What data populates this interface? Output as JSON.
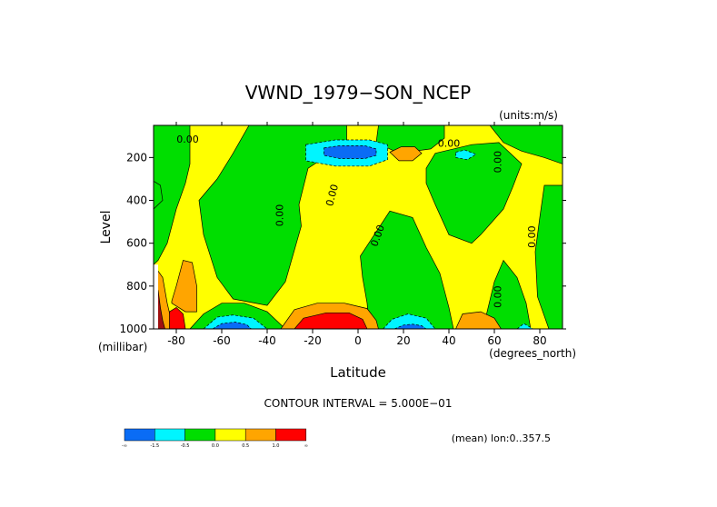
{
  "chart_data": {
    "type": "heatmap",
    "title": "VWND_1979−SON_NCEP",
    "units_label": "(units:m/s)",
    "xlabel": "Latitude",
    "ylabel": "Level",
    "x_units_label": "(degrees_north)",
    "y_units_label": "(millibar)",
    "xlim": [
      -90,
      90
    ],
    "ylim": [
      1000,
      50
    ],
    "y_reversed": true,
    "x_ticks": [
      -80,
      -60,
      -40,
      -20,
      0,
      20,
      40,
      60,
      80
    ],
    "y_ticks": [
      200,
      400,
      600,
      800,
      1000
    ],
    "contour_interval_label": "CONTOUR INTERVAL = 5.000E−01",
    "mean_label": "(mean) lon:0..357.5",
    "zero_contour_labels": [
      {
        "text": "0.00",
        "x": -75,
        "y": 130,
        "rotation": 0
      },
      {
        "text": "0.00",
        "x": -33,
        "y": 470,
        "rotation": -90
      },
      {
        "text": "0.00",
        "x": -10,
        "y": 380,
        "rotation": -75
      },
      {
        "text": "0.00",
        "x": 10,
        "y": 570,
        "rotation": -70
      },
      {
        "text": "0.00",
        "x": 40,
        "y": 150,
        "rotation": 0
      },
      {
        "text": "0.00",
        "x": 63,
        "y": 220,
        "rotation": -90
      },
      {
        "text": "0.00",
        "x": 63,
        "y": 850,
        "rotation": -90
      },
      {
        "text": "0.00",
        "x": 78,
        "y": 570,
        "rotation": -90
      }
    ],
    "colorbar": {
      "bins": [
        {
          "color": "#0a6cf5",
          "from": "-inf",
          "to": -1.5
        },
        {
          "color": "#00f5ff",
          "from": -1.5,
          "to": -0.5
        },
        {
          "color": "#00de00",
          "from": -0.5,
          "to": 0.0
        },
        {
          "color": "#ffff00",
          "from": 0.0,
          "to": 0.5
        },
        {
          "color": "#ffa500",
          "from": 0.5,
          "to": 1.0
        },
        {
          "color": "#ff0000",
          "from": 1.0,
          "to": "inf"
        }
      ],
      "labels": [
        "-∞",
        "-1.5",
        "-0.5",
        "0.0",
        "0.5",
        "1.0",
        "∞"
      ]
    },
    "regions": [
      {
        "value_band": "green",
        "color": "#00de00",
        "poly": [
          [
            -90,
            50
          ],
          [
            -74,
            50
          ],
          [
            -74,
            230
          ],
          [
            -76,
            320
          ],
          [
            -80,
            440
          ],
          [
            -84,
            600
          ],
          [
            -88,
            680
          ],
          [
            -90,
            700
          ]
        ]
      },
      {
        "value_band": "green",
        "color": "#00de00",
        "poly": [
          [
            -48,
            50
          ],
          [
            -5,
            50
          ],
          [
            -5,
            130
          ],
          [
            -22,
            250
          ],
          [
            -26,
            420
          ],
          [
            -25,
            520
          ],
          [
            -32,
            780
          ],
          [
            -40,
            890
          ],
          [
            -55,
            860
          ],
          [
            -62,
            760
          ],
          [
            -68,
            560
          ],
          [
            -70,
            400
          ],
          [
            -62,
            300
          ],
          [
            -55,
            180
          ]
        ]
      },
      {
        "value_band": "green",
        "color": "#00de00",
        "poly": [
          [
            9,
            50
          ],
          [
            38,
            50
          ],
          [
            38,
            110
          ],
          [
            32,
            160
          ],
          [
            18,
            180
          ],
          [
            8,
            130
          ]
        ]
      },
      {
        "value_band": "green",
        "color": "#00de00",
        "poly": [
          [
            34,
            180
          ],
          [
            50,
            140
          ],
          [
            62,
            130
          ],
          [
            68,
            190
          ],
          [
            72,
            230
          ],
          [
            68,
            340
          ],
          [
            64,
            440
          ],
          [
            54,
            560
          ],
          [
            50,
            600
          ],
          [
            40,
            560
          ],
          [
            34,
            420
          ],
          [
            30,
            320
          ],
          [
            30,
            250
          ]
        ]
      },
      {
        "value_band": "green",
        "color": "#00de00",
        "poly": [
          [
            58,
            50
          ],
          [
            90,
            50
          ],
          [
            90,
            230
          ],
          [
            82,
            200
          ],
          [
            72,
            170
          ],
          [
            64,
            130
          ]
        ]
      },
      {
        "value_band": "green",
        "color": "#00de00",
        "poly": [
          [
            82,
            330
          ],
          [
            90,
            330
          ],
          [
            90,
            1000
          ],
          [
            84,
            1000
          ],
          [
            79,
            850
          ],
          [
            78,
            640
          ],
          [
            80,
            480
          ]
        ]
      },
      {
        "value_band": "green",
        "color": "#00de00",
        "poly": [
          [
            1,
            660
          ],
          [
            14,
            450
          ],
          [
            24,
            480
          ],
          [
            30,
            620
          ],
          [
            36,
            740
          ],
          [
            40,
            900
          ],
          [
            42,
            1000
          ],
          [
            5,
            1000
          ],
          [
            4,
            880
          ],
          [
            2,
            760
          ]
        ]
      },
      {
        "value_band": "green",
        "color": "#00de00",
        "poly": [
          [
            55,
            1000
          ],
          [
            60,
            780
          ],
          [
            64,
            680
          ],
          [
            70,
            760
          ],
          [
            74,
            880
          ],
          [
            76,
            1000
          ]
        ]
      },
      {
        "value_band": "green",
        "color": "#00de00",
        "poly": [
          [
            -74,
            1000
          ],
          [
            -68,
            930
          ],
          [
            -60,
            880
          ],
          [
            -50,
            880
          ],
          [
            -40,
            920
          ],
          [
            -32,
            1000
          ]
        ]
      },
      {
        "value_band": "green",
        "color": "#00de00",
        "poly": [
          [
            -90,
            310
          ],
          [
            -87,
            330
          ],
          [
            -86,
            400
          ],
          [
            -90,
            440
          ]
        ]
      },
      {
        "value_band": "cyan",
        "color": "#00f5ff",
        "poly": [
          [
            -23,
            140
          ],
          [
            -10,
            118
          ],
          [
            5,
            118
          ],
          [
            13,
            140
          ],
          [
            13,
            210
          ],
          [
            5,
            240
          ],
          [
            -10,
            240
          ],
          [
            -23,
            215
          ]
        ]
      },
      {
        "value_band": "cyan",
        "color": "#00f5ff",
        "poly": [
          [
            43,
            175
          ],
          [
            47,
            165
          ],
          [
            52,
            185
          ],
          [
            48,
            210
          ],
          [
            43,
            200
          ]
        ]
      },
      {
        "value_band": "cyan",
        "color": "#00f5ff",
        "poly": [
          [
            -68,
            1000
          ],
          [
            -62,
            945
          ],
          [
            -55,
            935
          ],
          [
            -46,
            950
          ],
          [
            -40,
            1000
          ]
        ]
      },
      {
        "value_band": "cyan",
        "color": "#00f5ff",
        "poly": [
          [
            11,
            1000
          ],
          [
            15,
            955
          ],
          [
            22,
            930
          ],
          [
            30,
            950
          ],
          [
            34,
            1000
          ]
        ]
      },
      {
        "value_band": "cyan",
        "color": "#00f5ff",
        "poly": [
          [
            70,
            1000
          ],
          [
            73,
            975
          ],
          [
            77,
            1000
          ]
        ]
      },
      {
        "value_band": "blue",
        "color": "#0a6cf5",
        "poly": [
          [
            -15,
            155
          ],
          [
            -8,
            145
          ],
          [
            3,
            145
          ],
          [
            8,
            160
          ],
          [
            8,
            190
          ],
          [
            3,
            205
          ],
          [
            -8,
            205
          ],
          [
            -15,
            190
          ]
        ]
      },
      {
        "value_band": "blue",
        "color": "#0a6cf5",
        "poly": [
          [
            -64,
            1000
          ],
          [
            -60,
            975
          ],
          [
            -54,
            968
          ],
          [
            -49,
            980
          ],
          [
            -47,
            1000
          ]
        ]
      },
      {
        "value_band": "blue",
        "color": "#0a6cf5",
        "poly": [
          [
            16,
            1000
          ],
          [
            20,
            982
          ],
          [
            24,
            978
          ],
          [
            28,
            985
          ],
          [
            30,
            1000
          ]
        ]
      },
      {
        "value_band": "orange",
        "color": "#ffa500",
        "poly": [
          [
            14,
            175
          ],
          [
            19,
            150
          ],
          [
            25,
            150
          ],
          [
            28,
            180
          ],
          [
            24,
            215
          ],
          [
            18,
            215
          ]
        ]
      },
      {
        "value_band": "orange",
        "color": "#ffa500",
        "poly": [
          [
            -34,
            1000
          ],
          [
            -28,
            910
          ],
          [
            -18,
            880
          ],
          [
            -6,
            880
          ],
          [
            4,
            905
          ],
          [
            8,
            960
          ],
          [
            9,
            1000
          ]
        ]
      },
      {
        "value_band": "orange",
        "color": "#ffa500",
        "poly": [
          [
            -82,
            870
          ],
          [
            -80,
            800
          ],
          [
            -77,
            680
          ],
          [
            -73,
            690
          ],
          [
            -71,
            800
          ],
          [
            -71,
            920
          ],
          [
            -76,
            920
          ],
          [
            -82,
            880
          ]
        ]
      },
      {
        "value_band": "orange",
        "color": "#ffa500",
        "poly": [
          [
            -90,
            700
          ],
          [
            -86,
            760
          ],
          [
            -84,
            880
          ],
          [
            -82,
            970
          ],
          [
            -81,
            1000
          ],
          [
            -90,
            1000
          ]
        ]
      },
      {
        "value_band": "orange",
        "color": "#ffa500",
        "poly": [
          [
            43,
            1000
          ],
          [
            46,
            930
          ],
          [
            54,
            920
          ],
          [
            60,
            950
          ],
          [
            63,
            1000
          ]
        ]
      },
      {
        "value_band": "red",
        "color": "#ff0000",
        "poly": [
          [
            -28,
            1000
          ],
          [
            -24,
            950
          ],
          [
            -14,
            925
          ],
          [
            -4,
            925
          ],
          [
            2,
            955
          ],
          [
            4,
            1000
          ]
        ]
      },
      {
        "value_band": "red",
        "color": "#ff0000",
        "poly": [
          [
            -83,
            1000
          ],
          [
            -83,
            920
          ],
          [
            -80,
            900
          ],
          [
            -77,
            930
          ],
          [
            -76,
            1000
          ]
        ]
      },
      {
        "value_band": "dark-red",
        "color": "#a01010",
        "poly": [
          [
            -90,
            780
          ],
          [
            -88,
            820
          ],
          [
            -87,
            900
          ],
          [
            -86,
            960
          ],
          [
            -85,
            1000
          ],
          [
            -90,
            1000
          ]
        ]
      },
      {
        "value_band": "missing",
        "color": "#ffffff",
        "poly": [
          [
            -90,
            700
          ],
          [
            -88,
            700
          ],
          [
            -88,
            1000
          ],
          [
            -90,
            1000
          ]
        ]
      }
    ]
  }
}
